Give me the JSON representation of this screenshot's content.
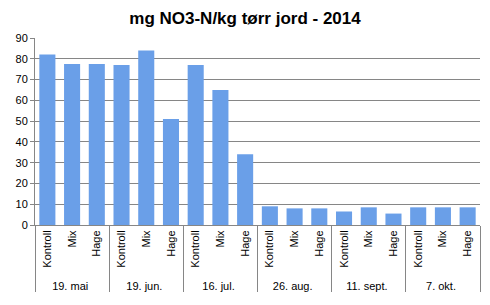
{
  "chart_data": {
    "type": "bar",
    "title": "mg NO3-N/kg tørr jord - 2014",
    "categories": [
      [
        "19. mai",
        "Kontroll"
      ],
      [
        "19. mai",
        "Mix"
      ],
      [
        "19. mai",
        "Hage"
      ],
      [
        "19. jun.",
        "Kontroll"
      ],
      [
        "19. jun.",
        "Mix"
      ],
      [
        "19. jun.",
        "Hage"
      ],
      [
        "16. jul.",
        "Kontroll"
      ],
      [
        "16. jul.",
        "Mix"
      ],
      [
        "16. jul.",
        "Hage"
      ],
      [
        "26. aug.",
        "Kontroll"
      ],
      [
        "26. aug.",
        "Mix"
      ],
      [
        "26. aug.",
        "Hage"
      ],
      [
        "11. sept.",
        "Kontroll"
      ],
      [
        "11. sept.",
        "Mix"
      ],
      [
        "11. sept.",
        "Hage"
      ],
      [
        "7. okt.",
        "Kontroll"
      ],
      [
        "7. okt.",
        "Mix"
      ],
      [
        "7. okt.",
        "Hage"
      ]
    ],
    "values": [
      82,
      77.5,
      77.5,
      77,
      84,
      51,
      77,
      65,
      34,
      9,
      8,
      8,
      6.5,
      8.5,
      5.5,
      8.5,
      8.5,
      8.5
    ],
    "color": "#6a9fe8",
    "ylim": [
      0,
      90
    ],
    "yticks": [
      0,
      10,
      20,
      30,
      40,
      50,
      60,
      70,
      80,
      90
    ],
    "grid": true
  }
}
